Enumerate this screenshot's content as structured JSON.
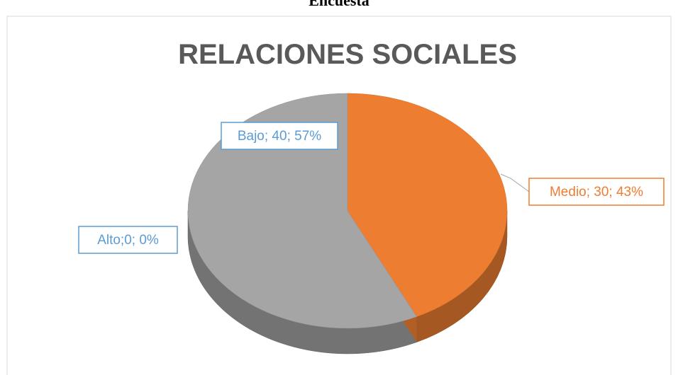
{
  "heading": "Encuesta",
  "chart_data": {
    "type": "pie",
    "title": "RELACIONES SOCIALES",
    "values": [
      30,
      40,
      0
    ],
    "value_labels": [
      "Medio; 30; 43%",
      "Bajo; 40; 57%",
      "Alto;0; 0%"
    ],
    "colors": [
      "#ed7d31",
      "#a5a5a5",
      "#5b9bd5"
    ]
  }
}
